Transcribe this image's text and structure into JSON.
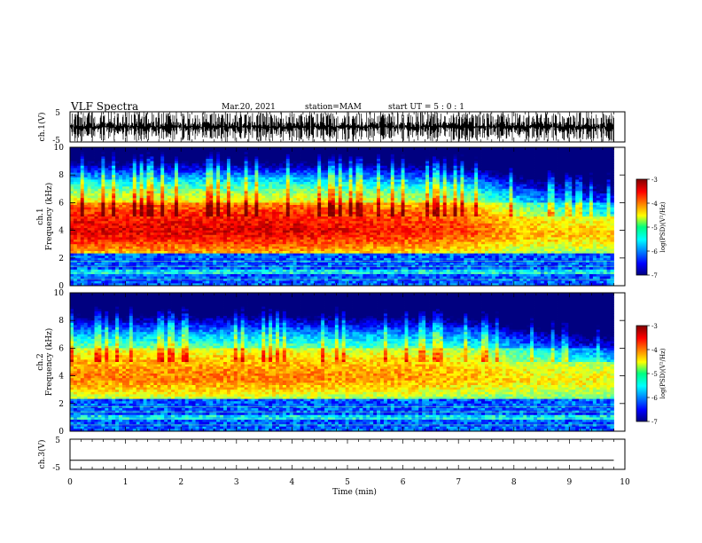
{
  "header": {
    "title": "VLF Spectra",
    "date": "Mar.20, 2021",
    "station": "station=MAM",
    "start": "start UT =  5 : 0 : 1"
  },
  "colorbar": {
    "label": "log(PSD)(V²/Hz)",
    "ticks": [
      "-3",
      "-4",
      "-5",
      "-6",
      "-7"
    ]
  },
  "chart_data": [
    {
      "type": "line",
      "panel": "ch.1 waveform",
      "ylabel": "ch.1(V)",
      "y_ticks": [
        "5",
        "-5"
      ],
      "ylim": [
        -5,
        5
      ],
      "xlim": [
        0,
        10
      ],
      "description_values": {
        "amplitude": "dense impulsive bursts spanning full range"
      }
    },
    {
      "type": "heatmap",
      "panel": "ch.1 spectrogram",
      "ylabel": "ch.1\nFrequency (kHz)",
      "y_ticks": [
        "0",
        "2",
        "4",
        "6",
        "8",
        "10"
      ],
      "ylim": [
        0,
        10
      ],
      "xlim": [
        0,
        10
      ],
      "colormap": "jet",
      "clim": [
        -7,
        -3
      ],
      "band_center_khz": [
        3.9,
        3.9,
        3.9,
        3.9,
        3.9,
        3.9,
        3.9,
        3.9,
        3.7,
        3.6,
        3.6
      ],
      "band_time_min": [
        0,
        1,
        2,
        3,
        4,
        5,
        6,
        7,
        8,
        9,
        9.8
      ],
      "band_level": [
        -3.4,
        -3.4,
        -3.4,
        -3.4,
        -3.4,
        -3.5,
        -3.6,
        -3.7,
        -4.2,
        -4.3,
        -4.3
      ]
    },
    {
      "type": "heatmap",
      "panel": "ch.2 spectrogram",
      "ylabel": "ch.2\nFrequency (kHz)",
      "y_ticks": [
        "0",
        "2",
        "4",
        "6",
        "8",
        "10"
      ],
      "ylim": [
        0,
        10
      ],
      "xlim": [
        0,
        10
      ],
      "colormap": "jet",
      "clim": [
        -7,
        -3
      ],
      "band_center_khz": [
        3.8,
        3.8,
        3.8,
        3.8,
        3.8,
        3.8,
        3.8,
        3.8,
        3.6,
        3.5,
        3.5
      ],
      "band_time_min": [
        0,
        1,
        2,
        3,
        4,
        5,
        6,
        7,
        8,
        9,
        9.8
      ],
      "band_level": [
        -4.0,
        -4.0,
        -4.0,
        -4.0,
        -4.0,
        -4.1,
        -4.1,
        -4.2,
        -4.4,
        -4.5,
        -4.5
      ]
    },
    {
      "type": "line",
      "panel": "ch.3 waveform",
      "ylabel": "ch.3(V)",
      "y_ticks": [
        "5",
        "-5"
      ],
      "ylim": [
        -5,
        5
      ],
      "xlim": [
        0,
        10
      ],
      "x": [
        0,
        9.8
      ],
      "y": [
        -2,
        -2
      ]
    }
  ],
  "xaxis": {
    "label": "Time (min)",
    "ticks": [
      "0",
      "1",
      "2",
      "3",
      "4",
      "5",
      "6",
      "7",
      "8",
      "9",
      "10"
    ]
  }
}
